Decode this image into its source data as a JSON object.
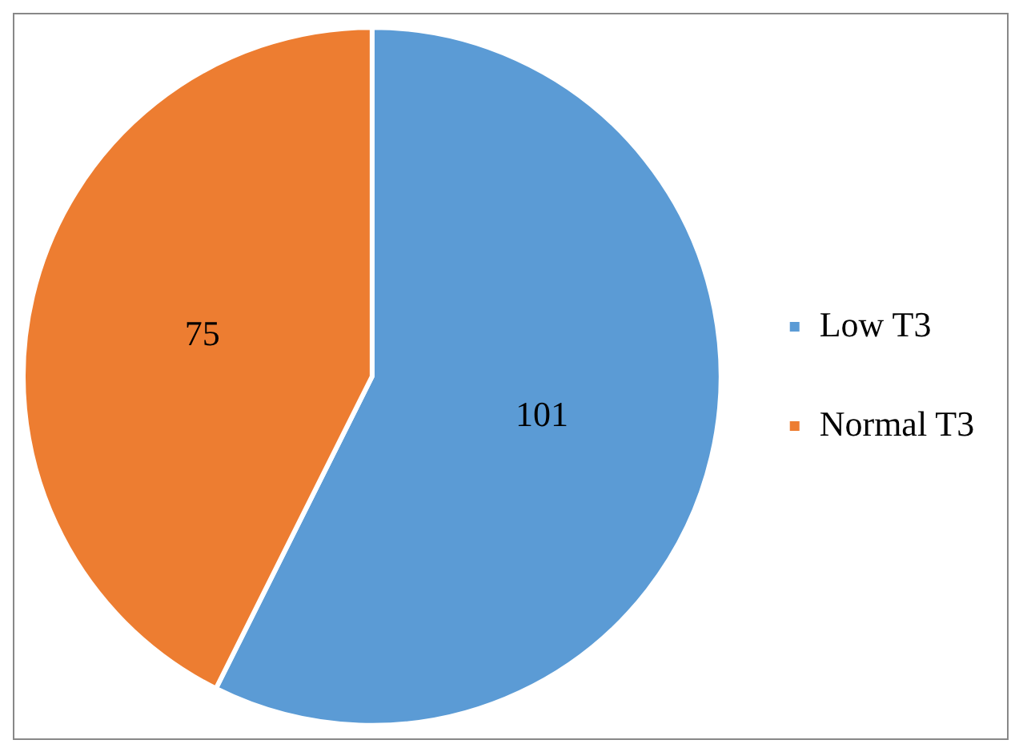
{
  "chart_data": {
    "type": "pie",
    "categories": [
      "Low T3",
      "Normal T3"
    ],
    "values": [
      101,
      75
    ],
    "colors": [
      "#5b9bd5",
      "#ed7d31"
    ],
    "data_labels": true,
    "legend": "right"
  }
}
